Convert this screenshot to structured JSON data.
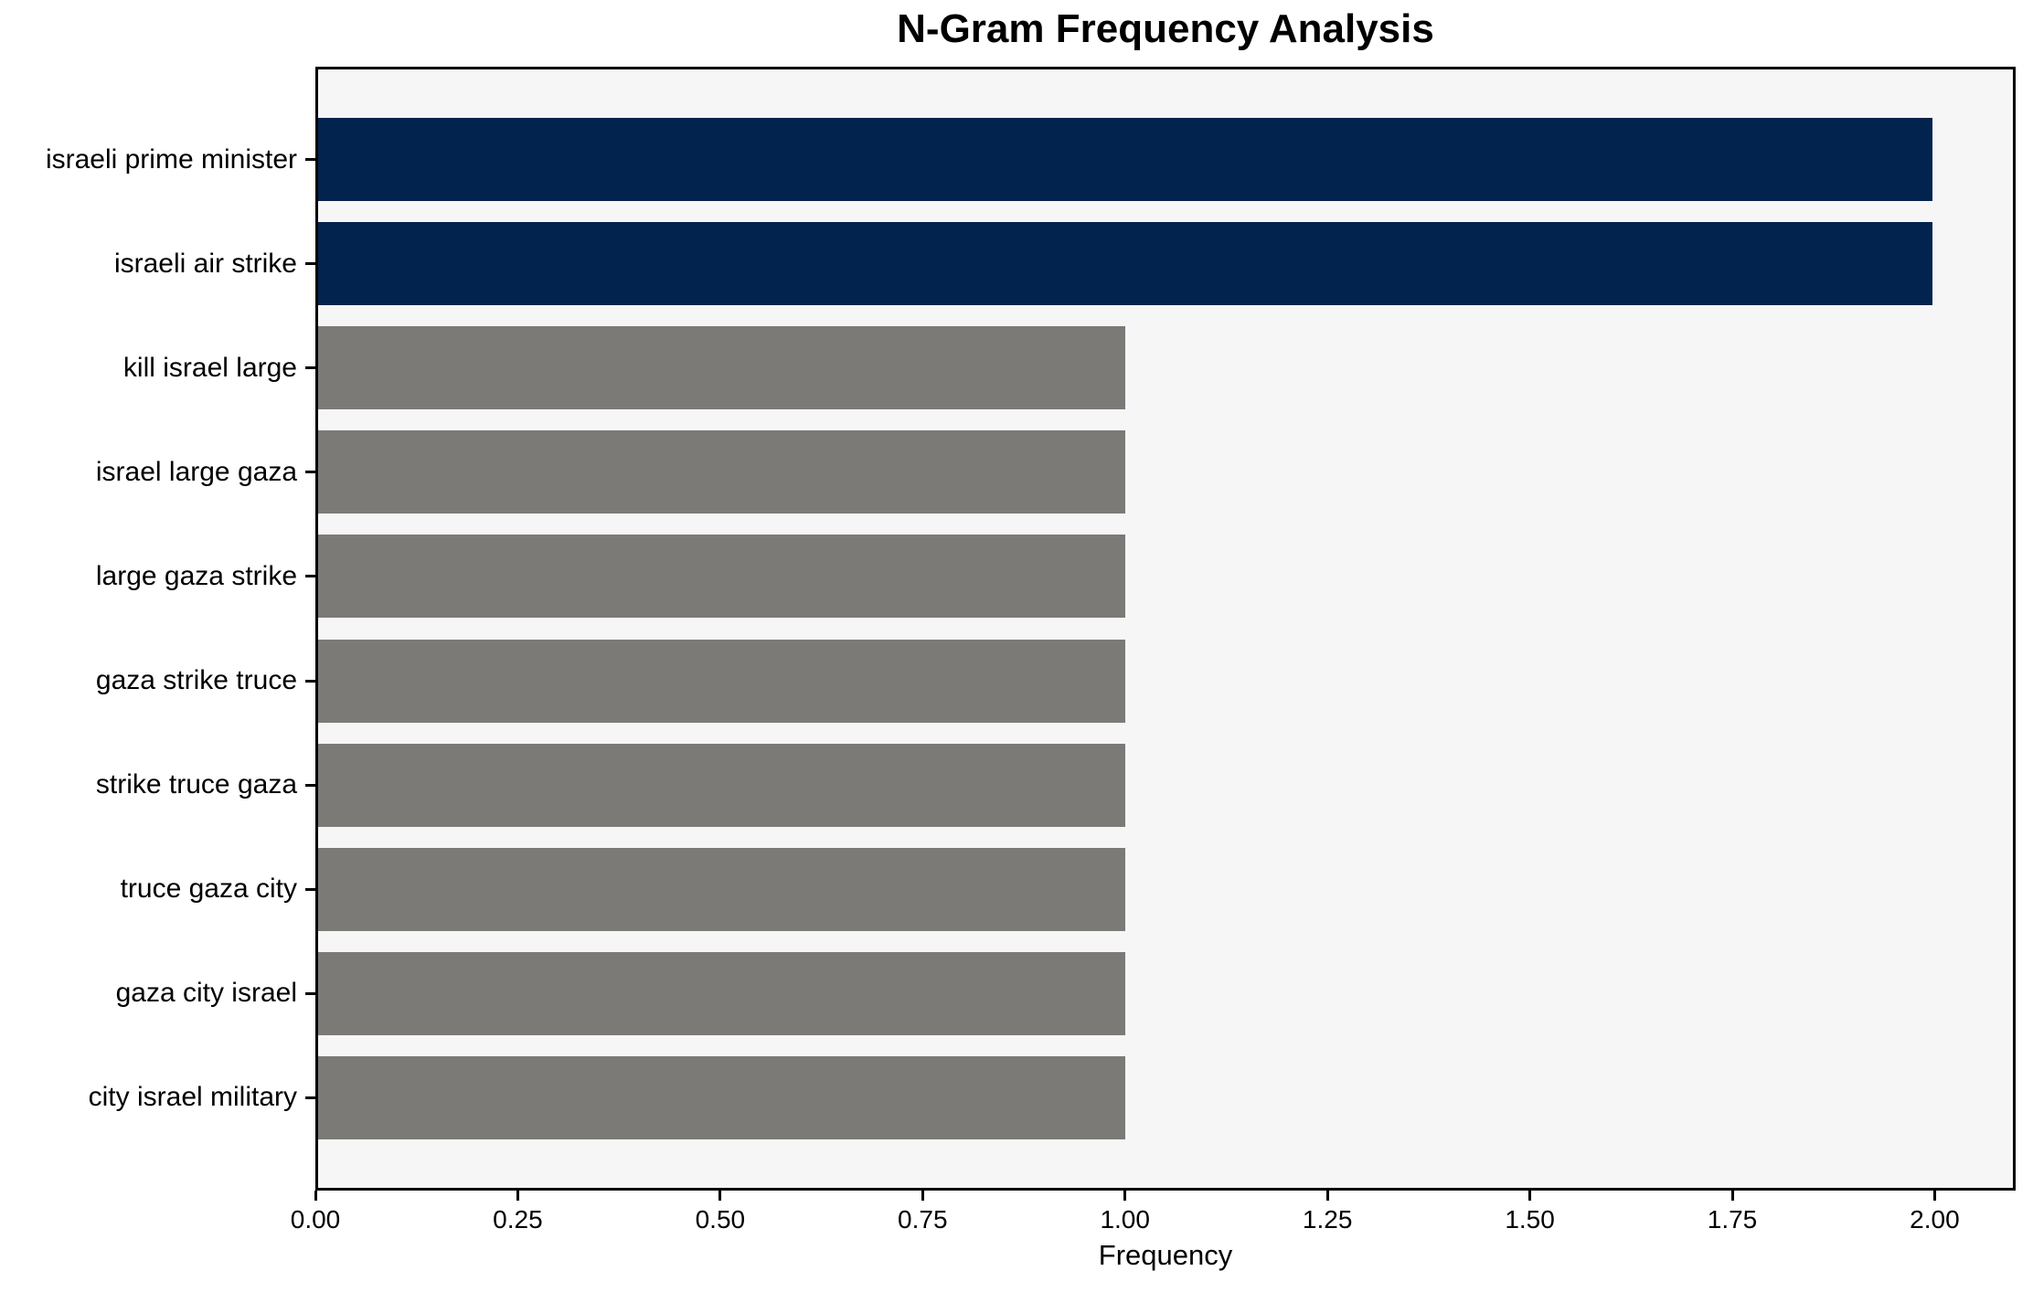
{
  "chart_data": {
    "type": "bar",
    "orientation": "horizontal",
    "title": "N-Gram Frequency Analysis",
    "xlabel": "Frequency",
    "ylabel": "",
    "categories": [
      "israeli prime minister",
      "israeli air strike",
      "kill israel large",
      "israel large gaza",
      "large gaza strike",
      "gaza strike truce",
      "strike truce gaza",
      "truce gaza city",
      "gaza city israel",
      "city israel military"
    ],
    "values": [
      2,
      2,
      1,
      1,
      1,
      1,
      1,
      1,
      1,
      1
    ],
    "bar_colors": [
      "#02234d",
      "#02234d",
      "#7b7a76",
      "#7b7a76",
      "#7b7a76",
      "#7b7a76",
      "#7b7a76",
      "#7b7a76",
      "#7b7a76",
      "#7b7a76"
    ],
    "xlim": [
      0,
      2.1
    ],
    "xtick_values": [
      0,
      0.25,
      0.5,
      0.75,
      1.0,
      1.25,
      1.5,
      1.75,
      2.0
    ],
    "xtick_labels": [
      "0.00",
      "0.25",
      "0.50",
      "0.75",
      "1.00",
      "1.25",
      "1.50",
      "1.75",
      "2.00"
    ],
    "grid": false,
    "legend_position": "none",
    "colors": {
      "highlight_bar": "#02234d",
      "default_bar": "#7b7a76",
      "plot_background": "#f7f6f6",
      "figure_background": "#ffffff",
      "spine": "#000000",
      "text": "#000000"
    }
  }
}
